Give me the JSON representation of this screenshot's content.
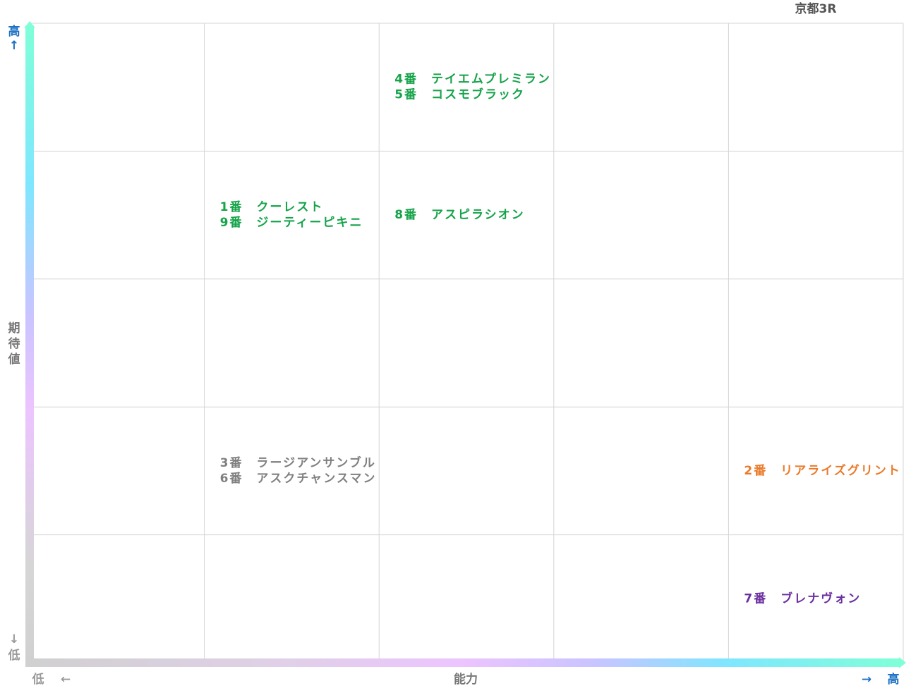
{
  "title": "京都3R",
  "y_axis": {
    "label": "期待値",
    "high": "高",
    "high_arrow": "↑",
    "low": "低",
    "low_arrow": "↓"
  },
  "x_axis": {
    "label": "能力",
    "low": "低",
    "low_arrow": "←",
    "high": "高",
    "high_arrow": "→"
  },
  "grid": {
    "rows": [
      [
        [],
        [],
        {
          "color": "#16a34a",
          "lines": [
            "4番　テイエムプレミラン",
            "5番　コスモブラック"
          ]
        },
        [],
        []
      ],
      [
        [],
        {
          "color": "#16a34a",
          "lines": [
            "1番　クーレスト",
            "9番　ジーティーピキニ"
          ]
        },
        {
          "color": "#16a34a",
          "lines": [
            "8番　アスピラシオン"
          ]
        },
        [],
        []
      ],
      [
        [],
        [],
        [],
        [],
        []
      ],
      [
        [],
        {
          "color": "#808080",
          "lines": [
            "3番　ラージアンサンブル",
            "6番　アスクチャンスマン"
          ]
        },
        [],
        [],
        {
          "color": "#ea7a2a",
          "lines": [
            "2番　リアライズグリント"
          ]
        }
      ],
      [
        [],
        [],
        [],
        [],
        {
          "color": "#6b2fa0",
          "lines": [
            "7番　ブレナヴォン"
          ]
        }
      ]
    ]
  }
}
